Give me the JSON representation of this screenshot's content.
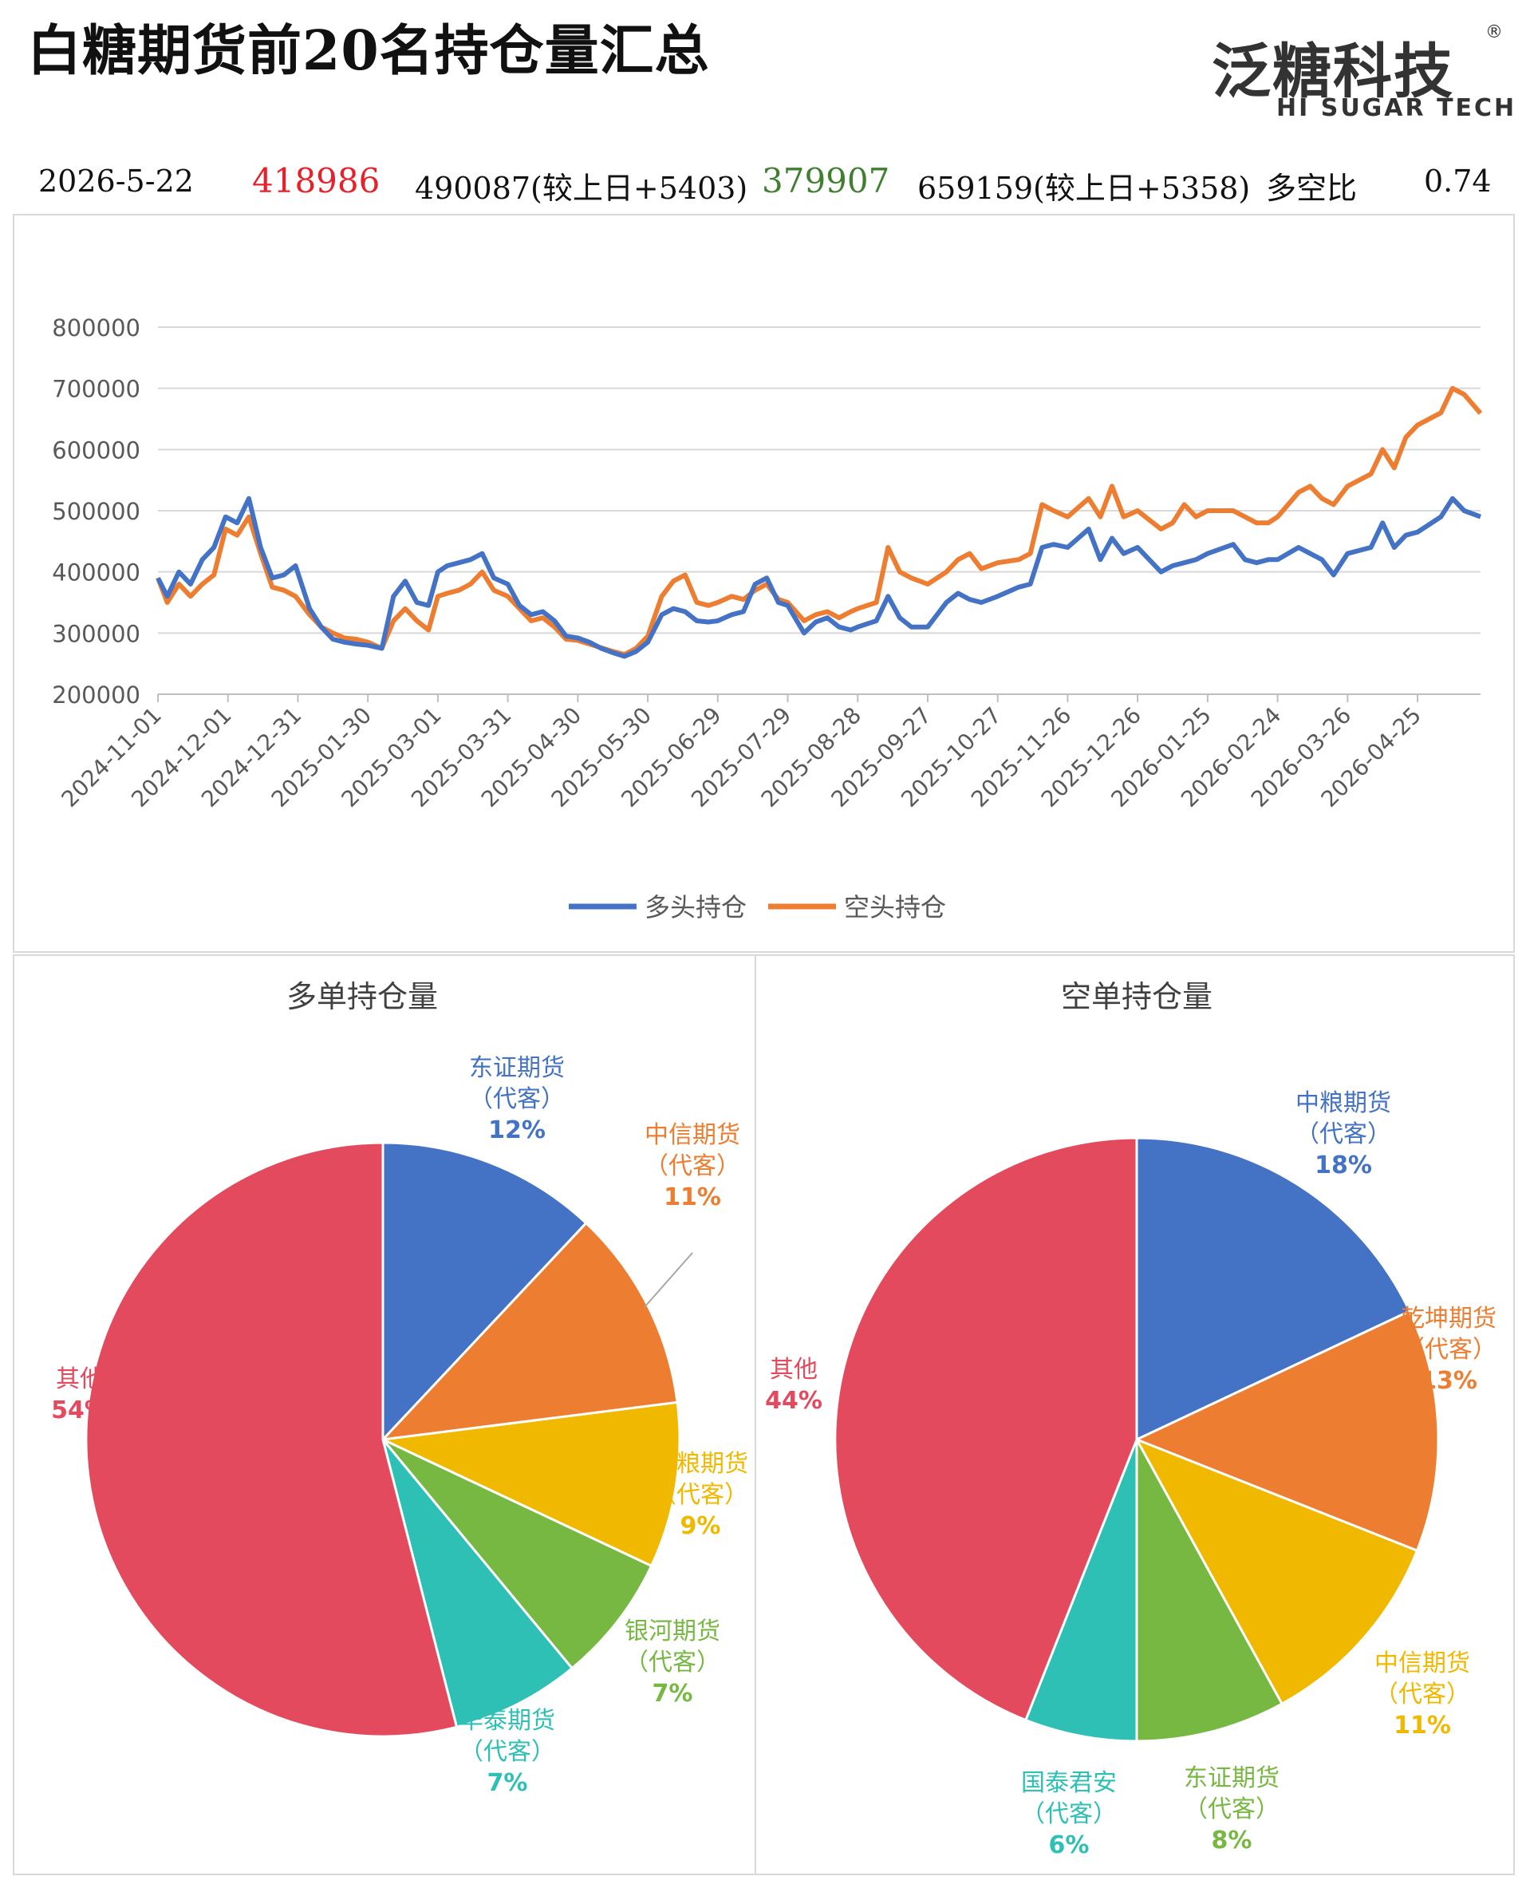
{
  "header": {
    "title": "白糖期货前20名持仓量汇总",
    "logo_cn": "泛糖科技",
    "logo_reg": "®",
    "logo_en": "HI SUGAR TECH"
  },
  "stats": {
    "date": "2026-5-22",
    "long_net": "418986",
    "long_total": "490087(较上日+5403)",
    "short_net": "379907",
    "short_total": "659159(较上日+5358)",
    "ratio_label": "多空比",
    "ratio_value": "0.74"
  },
  "colors": {
    "long": "#4472C4",
    "short": "#ED7D31",
    "red": "#E8202A",
    "green": "#3F7F2F"
  },
  "chart_data": [
    {
      "type": "line",
      "title": "",
      "legend": "bottom",
      "ylim": [
        200000,
        800000
      ],
      "yticks": [
        "800000",
        "700000",
        "600000",
        "500000",
        "400000",
        "300000",
        "200000"
      ],
      "xticks": [
        "2024-11-01",
        "2024-12-01",
        "2024-12-31",
        "2025-01-30",
        "2025-03-01",
        "2025-03-31",
        "2025-04-30",
        "2025-05-30",
        "2025-06-29",
        "2025-07-29",
        "2025-08-28",
        "2025-09-27",
        "2025-10-27",
        "2025-11-26",
        "2025-12-26",
        "2026-01-25",
        "2026-02-24",
        "2026-03-26",
        "2026-04-25"
      ],
      "x": [
        "2024-11-01",
        "2024-11-05",
        "2024-11-10",
        "2024-11-15",
        "2024-11-20",
        "2024-11-25",
        "2024-11-30",
        "2024-12-05",
        "2024-12-10",
        "2024-12-15",
        "2024-12-20",
        "2024-12-25",
        "2024-12-30",
        "2025-01-05",
        "2025-01-10",
        "2025-01-15",
        "2025-01-20",
        "2025-01-25",
        "2025-01-30",
        "2025-02-05",
        "2025-02-10",
        "2025-02-15",
        "2025-02-20",
        "2025-02-25",
        "2025-03-01",
        "2025-03-05",
        "2025-03-10",
        "2025-03-15",
        "2025-03-20",
        "2025-03-25",
        "2025-03-31",
        "2025-04-05",
        "2025-04-10",
        "2025-04-15",
        "2025-04-20",
        "2025-04-25",
        "2025-04-30",
        "2025-05-05",
        "2025-05-10",
        "2025-05-15",
        "2025-05-20",
        "2025-05-25",
        "2025-05-30",
        "2025-06-05",
        "2025-06-10",
        "2025-06-15",
        "2025-06-20",
        "2025-06-25",
        "2025-06-29",
        "2025-07-05",
        "2025-07-10",
        "2025-07-15",
        "2025-07-20",
        "2025-07-25",
        "2025-07-29",
        "2025-08-05",
        "2025-08-10",
        "2025-08-15",
        "2025-08-20",
        "2025-08-25",
        "2025-08-28",
        "2025-09-05",
        "2025-09-10",
        "2025-09-15",
        "2025-09-20",
        "2025-09-27",
        "2025-10-05",
        "2025-10-10",
        "2025-10-15",
        "2025-10-20",
        "2025-10-27",
        "2025-11-05",
        "2025-11-10",
        "2025-11-15",
        "2025-11-20",
        "2025-11-26",
        "2025-12-05",
        "2025-12-10",
        "2025-12-15",
        "2025-12-20",
        "2025-12-26",
        "2026-01-05",
        "2026-01-10",
        "2026-01-15",
        "2026-01-20",
        "2026-01-25",
        "2026-02-05",
        "2026-02-10",
        "2026-02-15",
        "2026-02-20",
        "2026-02-24",
        "2026-03-05",
        "2026-03-10",
        "2026-03-15",
        "2026-03-20",
        "2026-03-26",
        "2026-04-05",
        "2026-04-10",
        "2026-04-15",
        "2026-04-20",
        "2026-04-25",
        "2026-05-05",
        "2026-05-10",
        "2026-05-15",
        "2026-05-22"
      ],
      "series": [
        {
          "name": "多头持仓",
          "values": [
            390000,
            360000,
            400000,
            380000,
            420000,
            440000,
            490000,
            480000,
            520000,
            440000,
            390000,
            395000,
            410000,
            340000,
            310000,
            290000,
            285000,
            282000,
            280000,
            275000,
            360000,
            385000,
            350000,
            345000,
            400000,
            410000,
            415000,
            420000,
            430000,
            390000,
            380000,
            345000,
            330000,
            335000,
            320000,
            295000,
            292000,
            285000,
            275000,
            268000,
            262000,
            270000,
            285000,
            330000,
            340000,
            335000,
            320000,
            318000,
            320000,
            330000,
            335000,
            380000,
            390000,
            350000,
            345000,
            300000,
            318000,
            325000,
            310000,
            305000,
            310000,
            320000,
            360000,
            325000,
            310000,
            310000,
            350000,
            365000,
            355000,
            350000,
            360000,
            375000,
            380000,
            440000,
            445000,
            440000,
            470000,
            420000,
            455000,
            430000,
            440000,
            400000,
            410000,
            415000,
            420000,
            430000,
            445000,
            420000,
            415000,
            420000,
            420000,
            440000,
            430000,
            420000,
            395000,
            430000,
            440000,
            480000,
            440000,
            460000,
            465000,
            490000,
            520000,
            500000,
            490087
          ]
        },
        {
          "name": "空头持仓",
          "values": [
            390000,
            350000,
            380000,
            360000,
            380000,
            395000,
            470000,
            460000,
            490000,
            430000,
            375000,
            370000,
            360000,
            330000,
            310000,
            300000,
            292000,
            290000,
            285000,
            275000,
            320000,
            340000,
            320000,
            305000,
            360000,
            365000,
            370000,
            380000,
            400000,
            370000,
            360000,
            340000,
            320000,
            325000,
            310000,
            290000,
            288000,
            282000,
            276000,
            270000,
            265000,
            275000,
            295000,
            360000,
            385000,
            395000,
            350000,
            345000,
            350000,
            360000,
            355000,
            370000,
            380000,
            355000,
            350000,
            320000,
            330000,
            335000,
            325000,
            335000,
            340000,
            350000,
            440000,
            400000,
            390000,
            380000,
            400000,
            420000,
            430000,
            405000,
            415000,
            420000,
            430000,
            510000,
            500000,
            490000,
            520000,
            490000,
            540000,
            490000,
            500000,
            470000,
            480000,
            510000,
            490000,
            500000,
            500000,
            490000,
            480000,
            480000,
            490000,
            530000,
            540000,
            520000,
            510000,
            540000,
            560000,
            600000,
            570000,
            620000,
            640000,
            660000,
            700000,
            690000,
            659159
          ]
        }
      ]
    },
    {
      "type": "pie",
      "title": "多单持仓量",
      "slices": [
        {
          "label": "东证期货\n（代客）",
          "value": 12,
          "pct": "12%",
          "color": "#4472C4"
        },
        {
          "label": "中信期货\n（代客）",
          "value": 11,
          "pct": "11%",
          "color": "#ED7D31"
        },
        {
          "label": "中粮期货\n（代客）",
          "value": 9,
          "pct": "9%",
          "color": "#F1B800"
        },
        {
          "label": "银河期货\n（代客）",
          "value": 7,
          "pct": "7%",
          "color": "#77B843"
        },
        {
          "label": "华泰期货\n（代客）",
          "value": 7,
          "pct": "7%",
          "color": "#2EC0B5"
        },
        {
          "label": "其他",
          "value": 54,
          "pct": "54%",
          "color": "#E44A5E"
        }
      ]
    },
    {
      "type": "pie",
      "title": "空单持仓量",
      "slices": [
        {
          "label": "中粮期货\n（代客）",
          "value": 18,
          "pct": "18%",
          "color": "#4472C4"
        },
        {
          "label": "乾坤期货\n（代客）",
          "value": 13,
          "pct": "13%",
          "color": "#ED7D31"
        },
        {
          "label": "中信期货\n（代客）",
          "value": 11,
          "pct": "11%",
          "color": "#F1B800"
        },
        {
          "label": "东证期货\n（代客）",
          "value": 8,
          "pct": "8%",
          "color": "#77B843"
        },
        {
          "label": "国泰君安\n（代客）",
          "value": 6,
          "pct": "6%",
          "color": "#2EC0B5"
        },
        {
          "label": "其他",
          "value": 44,
          "pct": "44%",
          "color": "#E44A5E"
        }
      ]
    }
  ]
}
